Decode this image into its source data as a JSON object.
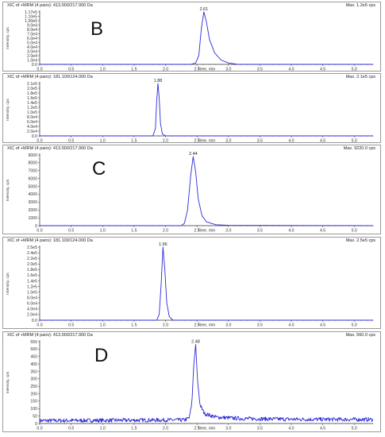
{
  "colors": {
    "trace": "#2b2bd6",
    "axis": "#333333",
    "frame": "#9a9a9a",
    "tick_text": "#333333"
  },
  "panels": [
    {
      "panel_letter": "B",
      "header": "XIC of +MRM (4 pairs): 413.000/217.900 Da",
      "max_label": "Max. 1.2e5 cps",
      "ylabel": "Intensity, cps",
      "xlabel": "Time, min",
      "peak_label": "2.61",
      "y_ticks": [
        "0.0",
        "1.0e4",
        "2.0e4",
        "3.0e4",
        "4.0e4",
        "5.0e4",
        "6.0e4",
        "7.0e4",
        "8.0e4",
        "9.0e4",
        "1.00e5",
        "1.10e5",
        "1.17e5"
      ],
      "x_ticks": [
        "0.0",
        "0.5",
        "1.0",
        "1.5",
        "2.0",
        "2.5",
        "3.0",
        "3.5",
        "4.0",
        "4.5",
        "5.0"
      ]
    },
    {
      "panel_letter": "",
      "header": "XIC of +MRM (4 pairs): 181.100/124.000 Da",
      "max_label": "Max. 2.1e5 cps",
      "ylabel": "Intensity, cps",
      "xlabel": "Time, min",
      "peak_label": "1.88",
      "y_ticks": [
        "0.0",
        "2.0e4",
        "4.0e4",
        "6.0e4",
        "8.0e4",
        "1.0e5",
        "1.2e5",
        "1.4e5",
        "1.6e5",
        "1.8e5",
        "2.0e5",
        "2.1e5"
      ],
      "x_ticks": [
        "0.0",
        "0.5",
        "1.0",
        "1.5",
        "2.0",
        "2.5",
        "3.0",
        "3.5",
        "4.0",
        "4.5",
        "5.0"
      ]
    },
    {
      "panel_letter": "C",
      "header": "XIC of +MRM (4 pairs): 413.000/217.900 Da",
      "max_label": "Max. 9220.0 cps",
      "ylabel": "Intensity, cps",
      "xlabel": "Time, min",
      "peak_label": "2.44",
      "y_ticks": [
        "0",
        "1000",
        "2000",
        "3000",
        "4000",
        "5000",
        "6000",
        "7000",
        "8000",
        "9000"
      ],
      "x_ticks": [
        "0.0",
        "0.5",
        "1.0",
        "1.5",
        "2.0",
        "2.5",
        "3.0",
        "3.5",
        "4.0",
        "4.5",
        "5.0"
      ]
    },
    {
      "panel_letter": "",
      "header": "XIC of +MRM (4 pairs): 181.100/124.000 Da",
      "max_label": "Max. 2.5e5 cps",
      "ylabel": "Intensity, cps",
      "xlabel": "Time, min",
      "peak_label": "1.96",
      "y_ticks": [
        "0.0",
        "2.0e4",
        "4.0e4",
        "6.0e4",
        "8.0e4",
        "1.0e5",
        "1.2e5",
        "1.4e5",
        "1.6e5",
        "1.8e5",
        "2.0e5",
        "2.2e5",
        "2.4e5",
        "2.5e5"
      ],
      "x_ticks": [
        "0.0",
        "0.5",
        "1.0",
        "1.5",
        "2.0",
        "2.5",
        "3.0",
        "3.5",
        "4.0",
        "4.5",
        "5.0"
      ]
    },
    {
      "panel_letter": "D",
      "header": "XIC of +MRM (4 pairs): 413.000/217.900 Da",
      "max_label": "Max. 560.0 cps",
      "ylabel": "Intensity, cps",
      "xlabel": "Time, min",
      "peak_label": "2.48",
      "y_ticks": [
        "0",
        "50",
        "100",
        "150",
        "200",
        "250",
        "300",
        "350",
        "400",
        "450",
        "500",
        "550"
      ],
      "x_ticks": [
        "0.0",
        "0.5",
        "1.0",
        "1.5",
        "2.0",
        "2.5",
        "3.0",
        "3.5",
        "4.0",
        "4.5",
        "5.0"
      ]
    }
  ],
  "chart_data": [
    {
      "type": "line",
      "title": "XIC of +MRM (4 pairs): 413.000/217.900 Da",
      "xlabel": "Time, min",
      "ylabel": "Intensity, cps",
      "xlim": [
        0,
        5.3
      ],
      "ylim": [
        0,
        117000
      ],
      "peak": {
        "x": 2.61,
        "y": 117000
      },
      "series": [
        {
          "values": [
            [
              0.0,
              0
            ],
            [
              2.4,
              0
            ],
            [
              2.48,
              3000
            ],
            [
              2.53,
              20000
            ],
            [
              2.57,
              80000
            ],
            [
              2.61,
              117000
            ],
            [
              2.65,
              95000
            ],
            [
              2.7,
              55000
            ],
            [
              2.78,
              26000
            ],
            [
              2.88,
              10000
            ],
            [
              3.0,
              3000
            ],
            [
              3.15,
              0
            ],
            [
              5.3,
              0
            ]
          ]
        }
      ]
    },
    {
      "type": "line",
      "title": "XIC of +MRM (4 pairs): 181.100/124.000 Da",
      "xlabel": "Time, min",
      "ylabel": "Intensity, cps",
      "xlim": [
        0,
        5.3
      ],
      "ylim": [
        0,
        210000
      ],
      "peak": {
        "x": 1.88,
        "y": 210000
      },
      "series": [
        {
          "values": [
            [
              0.0,
              0
            ],
            [
              1.8,
              0
            ],
            [
              1.84,
              30000
            ],
            [
              1.86,
              140000
            ],
            [
              1.88,
              210000
            ],
            [
              1.9,
              150000
            ],
            [
              1.92,
              50000
            ],
            [
              1.95,
              8000
            ],
            [
              2.0,
              0
            ],
            [
              5.3,
              0
            ]
          ]
        }
      ]
    },
    {
      "type": "line",
      "title": "XIC of +MRM (4 pairs): 413.000/217.900 Da",
      "xlabel": "Time, min",
      "ylabel": "Intensity, cps",
      "xlim": [
        0,
        5.3
      ],
      "ylim": [
        0,
        9220
      ],
      "peak": {
        "x": 2.44,
        "y": 9000
      },
      "series": [
        {
          "values": [
            [
              0.0,
              0
            ],
            [
              2.25,
              0
            ],
            [
              2.3,
              300
            ],
            [
              2.35,
              2000
            ],
            [
              2.4,
              6500
            ],
            [
              2.44,
              9000
            ],
            [
              2.48,
              7000
            ],
            [
              2.52,
              3500
            ],
            [
              2.58,
              1300
            ],
            [
              2.65,
              500
            ],
            [
              2.8,
              120
            ],
            [
              3.0,
              40
            ],
            [
              5.3,
              0
            ]
          ]
        }
      ]
    },
    {
      "type": "line",
      "title": "XIC of +MRM (4 pairs): 181.100/124.000 Da",
      "xlabel": "Time, min",
      "ylabel": "Intensity, cps",
      "xlim": [
        0,
        5.3
      ],
      "ylim": [
        0,
        250000
      ],
      "peak": {
        "x": 1.96,
        "y": 250000
      },
      "series": [
        {
          "values": [
            [
              0.0,
              0
            ],
            [
              1.86,
              0
            ],
            [
              1.9,
              20000
            ],
            [
              1.93,
              120000
            ],
            [
              1.96,
              250000
            ],
            [
              1.99,
              170000
            ],
            [
              2.02,
              60000
            ],
            [
              2.06,
              12000
            ],
            [
              2.12,
              0
            ],
            [
              5.3,
              0
            ]
          ]
        }
      ]
    },
    {
      "type": "line",
      "title": "XIC of +MRM (4 pairs): 413.000/217.900 Da",
      "xlabel": "Time, min",
      "ylabel": "Intensity, cps",
      "xlim": [
        0,
        5.3
      ],
      "ylim": [
        0,
        580
      ],
      "peak": {
        "x": 2.48,
        "y": 560
      },
      "baseline": 25,
      "series": [
        {
          "values": [
            [
              0.0,
              20
            ],
            [
              2.3,
              25
            ],
            [
              2.38,
              40
            ],
            [
              2.42,
              150
            ],
            [
              2.45,
              420
            ],
            [
              2.48,
              560
            ],
            [
              2.51,
              300
            ],
            [
              2.55,
              130
            ],
            [
              2.62,
              70
            ],
            [
              2.8,
              45
            ],
            [
              3.2,
              35
            ],
            [
              4.0,
              30
            ],
            [
              5.3,
              28
            ]
          ]
        }
      ]
    }
  ]
}
